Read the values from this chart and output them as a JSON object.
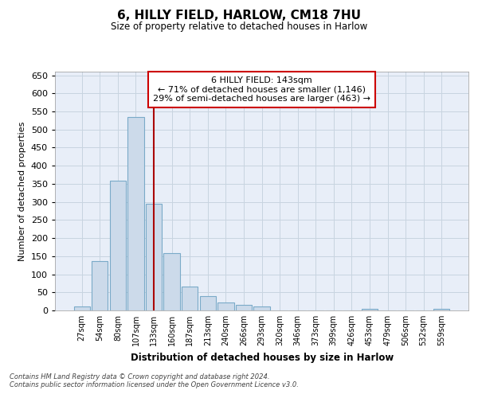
{
  "title": "6, HILLY FIELD, HARLOW, CM18 7HU",
  "subtitle": "Size of property relative to detached houses in Harlow",
  "xlabel": "Distribution of detached houses by size in Harlow",
  "ylabel": "Number of detached properties",
  "bar_color": "#ccdaea",
  "bar_edge_color": "#7aaac8",
  "vline_color": "#aa0000",
  "annotation_box_bg": "#ffffff",
  "annotation_box_edge": "#cc0000",
  "grid_color": "#c8d4e0",
  "background_color": "#e8eef8",
  "footer_line1": "Contains HM Land Registry data © Crown copyright and database right 2024.",
  "footer_line2": "Contains public sector information licensed under the Open Government Licence v3.0.",
  "annotation_line1": "6 HILLY FIELD: 143sqm",
  "annotation_line2": "← 71% of detached houses are smaller (1,146)",
  "annotation_line3": "29% of semi-detached houses are larger (463) →",
  "categories": [
    "27sqm",
    "54sqm",
    "80sqm",
    "107sqm",
    "133sqm",
    "160sqm",
    "187sqm",
    "213sqm",
    "240sqm",
    "266sqm",
    "293sqm",
    "320sqm",
    "346sqm",
    "373sqm",
    "399sqm",
    "426sqm",
    "453sqm",
    "479sqm",
    "506sqm",
    "532sqm",
    "559sqm"
  ],
  "values": [
    10,
    137,
    358,
    535,
    295,
    158,
    65,
    40,
    23,
    15,
    10,
    0,
    0,
    0,
    0,
    0,
    5,
    0,
    0,
    0,
    5
  ],
  "vline_index": 4,
  "ylim": [
    0,
    660
  ],
  "yticks": [
    0,
    50,
    100,
    150,
    200,
    250,
    300,
    350,
    400,
    450,
    500,
    550,
    600,
    650
  ]
}
